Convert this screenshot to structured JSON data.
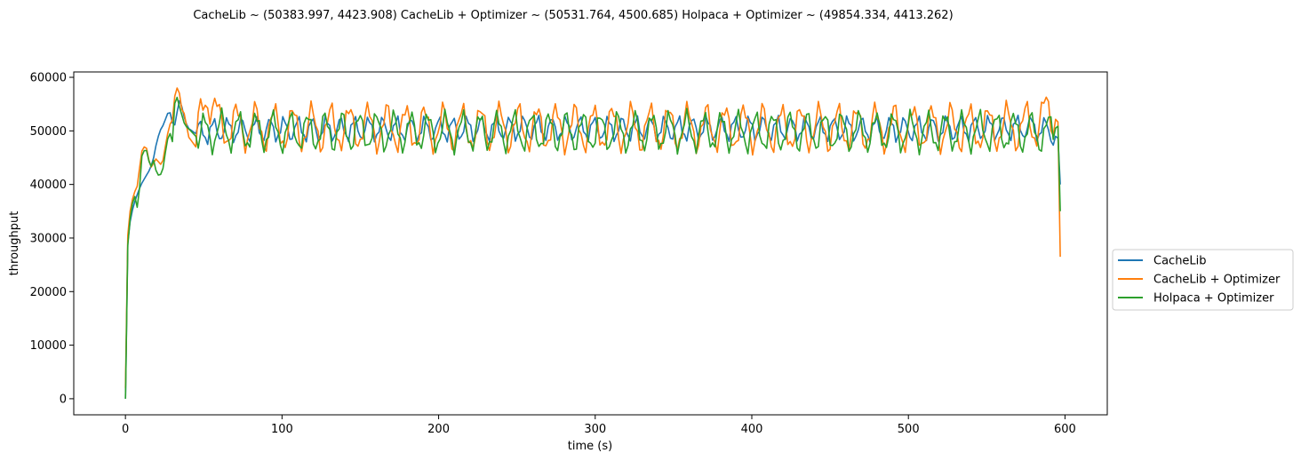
{
  "chart_data": {
    "type": "line",
    "title": "CacheLib ~ (50383.997, 4423.908)   CacheLib + Optimizer ~ (50531.764, 4500.685)   Holpaca + Optimizer ~ (49854.334, 4413.262)",
    "xlabel": "time (s)",
    "ylabel": "throughput",
    "xlim": [
      -33,
      627
    ],
    "ylim": [
      -3000,
      61000
    ],
    "x_ticks": [
      0,
      100,
      200,
      300,
      400,
      500,
      600
    ],
    "y_ticks": [
      0,
      10000,
      20000,
      30000,
      40000,
      50000,
      60000
    ],
    "x_tick_labels": [
      "0",
      "100",
      "200",
      "300",
      "400",
      "500",
      "600"
    ],
    "y_tick_labels": [
      "0",
      "10000",
      "20000",
      "30000",
      "40000",
      "50000",
      "60000"
    ],
    "grid": false,
    "legend_position": "right-outside",
    "series": [
      {
        "name": "CacheLib",
        "color": "#1f77b4",
        "x": [
          0,
          1,
          3,
          5,
          8,
          10,
          13,
          16,
          18,
          20,
          22,
          24,
          26,
          28,
          30,
          32,
          34,
          36,
          38,
          40,
          45,
          50,
          60,
          100,
          150,
          200,
          250,
          300,
          350,
          400,
          450,
          500,
          550,
          580,
          590,
          596,
          597
        ],
        "y": [
          0,
          28000,
          33000,
          36000,
          38500,
          40000,
          41500,
          43000,
          45000,
          48000,
          50000,
          51000,
          52500,
          54000,
          51500,
          51000,
          56000,
          54500,
          52000,
          50500,
          49500,
          49800,
          50200,
          50300,
          50400,
          50300,
          50500,
          50400,
          50400,
          50500,
          50400,
          50300,
          50500,
          50600,
          50000,
          48500,
          40000
        ],
        "amplitude": 2000,
        "period": 9
      },
      {
        "name": "CacheLib + Optimizer",
        "color": "#ff7f0e",
        "x": [
          0,
          1,
          3,
          5,
          8,
          10,
          13,
          16,
          18,
          20,
          22,
          24,
          26,
          28,
          30,
          32,
          34,
          36,
          38,
          40,
          45,
          50,
          52,
          60,
          100,
          150,
          200,
          250,
          300,
          350,
          400,
          450,
          500,
          550,
          580,
          590,
          596,
          597
        ],
        "y": [
          2000,
          29000,
          35000,
          38000,
          40000,
          46000,
          47500,
          43000,
          44000,
          45000,
          43500,
          44500,
          48000,
          51000,
          52000,
          58000,
          58000,
          54000,
          53000,
          49000,
          47000,
          55000,
          57500,
          51000,
          50500,
          50700,
          50500,
          50600,
          50500,
          50600,
          50500,
          50500,
          50600,
          50500,
          51000,
          53500,
          51500,
          26500
        ],
        "amplitude": 3800,
        "period": 12
      },
      {
        "name": "Holpaca + Optimizer",
        "color": "#2ca02c",
        "x": [
          0,
          1,
          3,
          5,
          7,
          8,
          10,
          13,
          16,
          18,
          20,
          22,
          24,
          26,
          28,
          30,
          32,
          34,
          36,
          38,
          40,
          45,
          50,
          60,
          100,
          150,
          200,
          250,
          300,
          350,
          400,
          450,
          500,
          550,
          580,
          590,
          596,
          597
        ],
        "y": [
          0,
          27000,
          33500,
          37500,
          38000,
          33500,
          45000,
          47000,
          43000,
          44500,
          42000,
          41500,
          43000,
          47000,
          50000,
          48000,
          57500,
          55000,
          53000,
          51000,
          50500,
          49000,
          49500,
          50000,
          49800,
          49900,
          49800,
          49900,
          49800,
          49900,
          49800,
          49900,
          49800,
          49900,
          49700,
          49500,
          51000,
          35000
        ],
        "amplitude": 3200,
        "period": 11
      }
    ]
  }
}
